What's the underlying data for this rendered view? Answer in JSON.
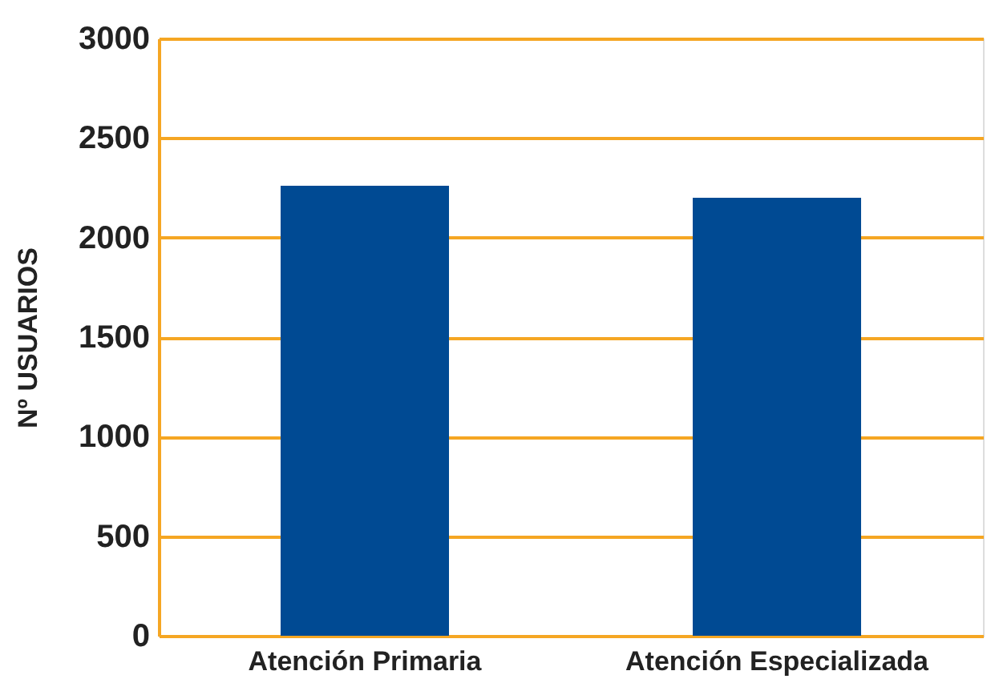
{
  "chart_data": {
    "type": "bar",
    "ylabel": "Nº USUARIOS",
    "categories": [
      "Atención Primaria",
      "Atención Especializada"
    ],
    "values": [
      2260,
      2200
    ],
    "color": "#004a93",
    "ylim": [
      0,
      3000
    ],
    "yticks": [
      0,
      500,
      1000,
      1500,
      2000,
      2500,
      3000
    ],
    "grid": "y"
  }
}
